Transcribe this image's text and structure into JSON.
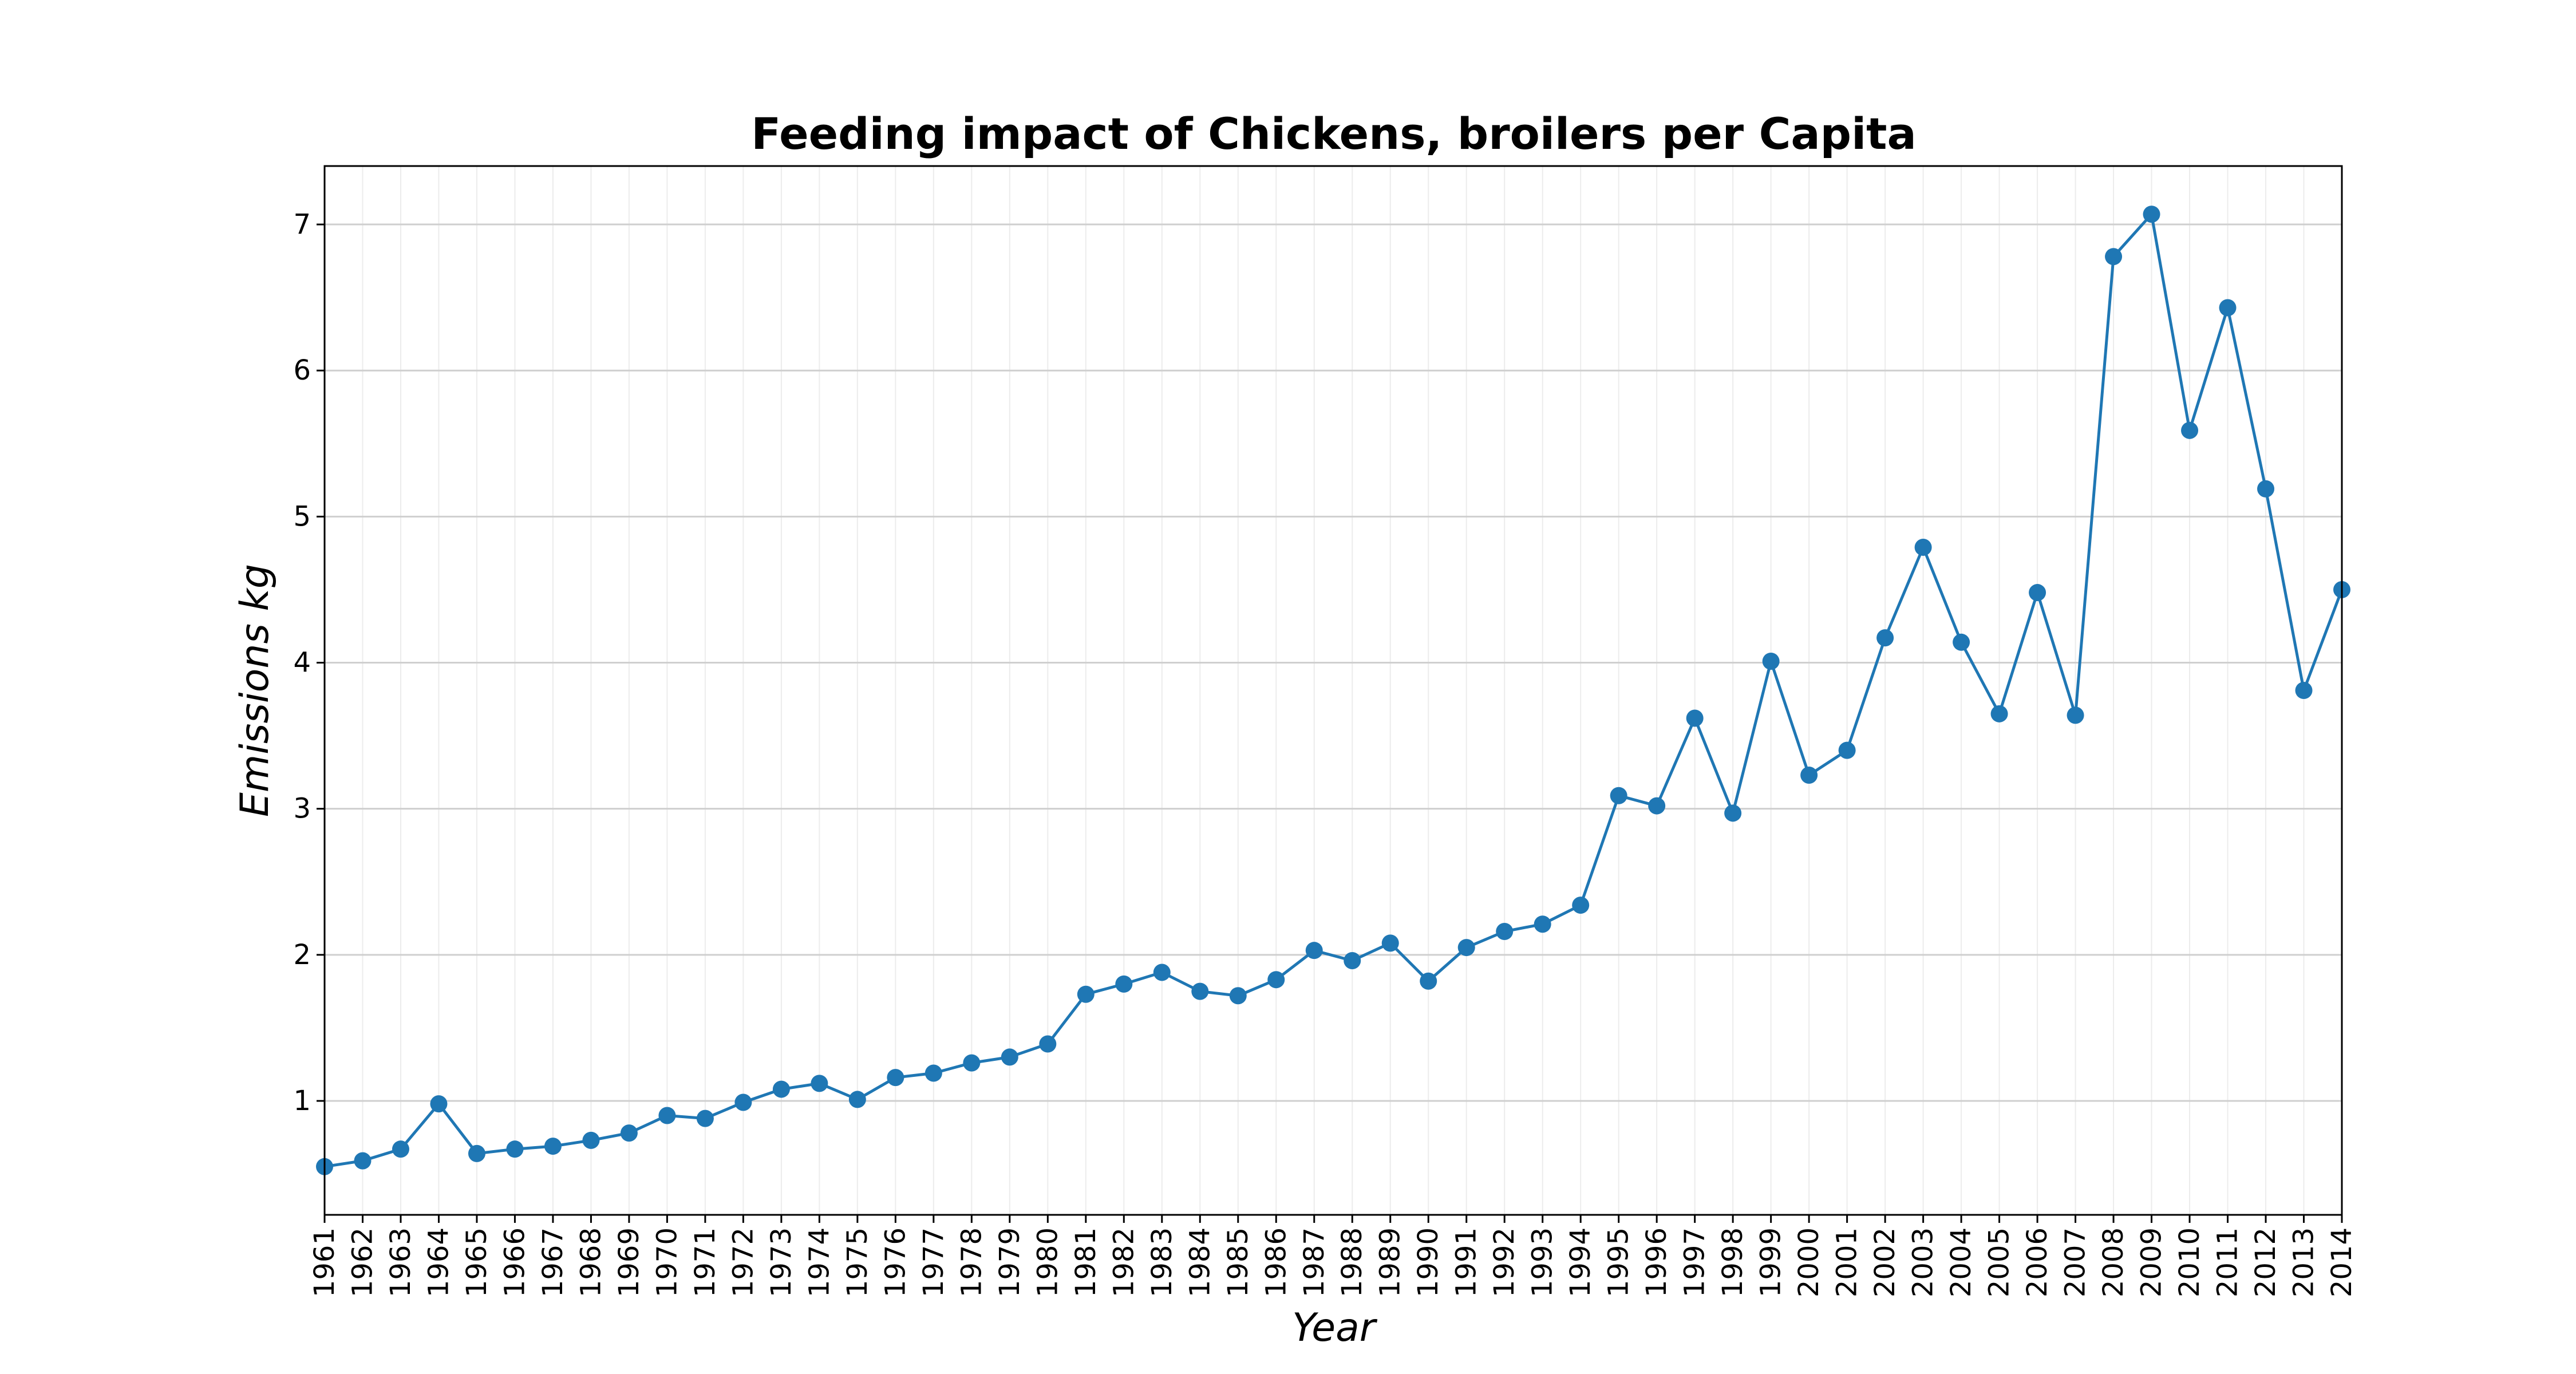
{
  "chart_data": {
    "type": "line",
    "title": "Feeding impact of Chickens, broilers per Capita",
    "xlabel": "Year",
    "ylabel": "Emissions kg",
    "ylim": [
      0.22,
      7.4
    ],
    "yticks": [
      1,
      2,
      3,
      4,
      5,
      6,
      7
    ],
    "grid": true,
    "marker": "circle",
    "color": "#1f77b4",
    "x": [
      1961,
      1962,
      1963,
      1964,
      1965,
      1966,
      1967,
      1968,
      1969,
      1970,
      1971,
      1972,
      1973,
      1974,
      1975,
      1976,
      1977,
      1978,
      1979,
      1980,
      1981,
      1982,
      1983,
      1984,
      1985,
      1986,
      1987,
      1988,
      1989,
      1990,
      1991,
      1992,
      1993,
      1994,
      1995,
      1996,
      1997,
      1998,
      1999,
      2000,
      2001,
      2002,
      2003,
      2004,
      2005,
      2006,
      2007,
      2008,
      2009,
      2010,
      2011,
      2012,
      2013,
      2014
    ],
    "series": [
      {
        "values": [
          0.55,
          0.59,
          0.67,
          0.98,
          0.64,
          0.67,
          0.69,
          0.73,
          0.78,
          0.9,
          0.88,
          0.99,
          1.08,
          1.12,
          1.01,
          1.16,
          1.19,
          1.26,
          1.3,
          1.39,
          1.73,
          1.8,
          1.88,
          1.75,
          1.72,
          1.83,
          2.03,
          1.96,
          2.08,
          1.82,
          2.05,
          2.16,
          2.21,
          2.34,
          3.09,
          3.02,
          3.62,
          2.97,
          4.01,
          3.23,
          3.4,
          4.17,
          4.79,
          4.14,
          3.65,
          4.48,
          3.64,
          6.78,
          7.07,
          5.59,
          6.43,
          5.19,
          3.81,
          4.5
        ]
      }
    ]
  }
}
